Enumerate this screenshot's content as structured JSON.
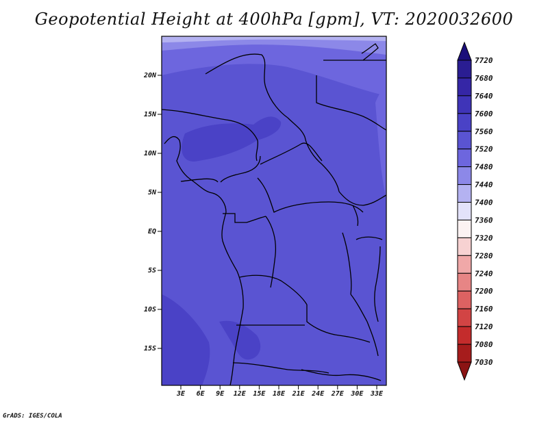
{
  "title": "Geopotential Height at 400hPa [gpm], VT: 2020032600",
  "credit": "GrADS: IGES/COLA",
  "map": {
    "lat_labels": [
      "20N",
      "15N",
      "10N",
      "5N",
      "EQ",
      "5S",
      "10S",
      "15S"
    ],
    "lon_labels": [
      "3E",
      "6E",
      "9E",
      "12E",
      "15E",
      "18E",
      "21E",
      "24E",
      "27E",
      "30E",
      "33E"
    ]
  },
  "colorbar": {
    "levels": [
      "7720",
      "7680",
      "7640",
      "7600",
      "7560",
      "7520",
      "7480",
      "7440",
      "7400",
      "7360",
      "7320",
      "7280",
      "7240",
      "7200",
      "7160",
      "7120",
      "7080",
      "7030"
    ],
    "colors": [
      "#1b0f7a",
      "#2a1d92",
      "#3526a6",
      "#3f34b8",
      "#4a42c6",
      "#5a54d2",
      "#6d66de",
      "#8c88e8",
      "#b4b2f1",
      "#e3e2fa",
      "#fbf2f2",
      "#f7d2d2",
      "#f0a8a8",
      "#e78585",
      "#dd6262",
      "#d24444",
      "#c42c2c",
      "#a61c1c",
      "#8b1414"
    ]
  }
}
